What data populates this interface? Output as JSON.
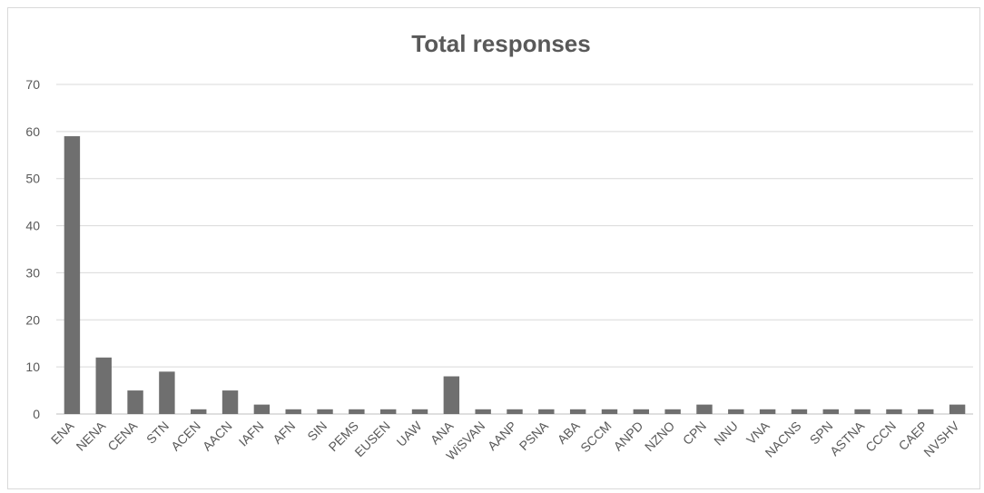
{
  "chart_data": {
    "type": "bar",
    "title": "Total responses",
    "xlabel": "",
    "ylabel": "",
    "ylim": [
      0,
      70
    ],
    "yticks": [
      0,
      10,
      20,
      30,
      40,
      50,
      60,
      70
    ],
    "grid": true,
    "legend": "none",
    "bar_color": "#6f6f6f",
    "categories": [
      "ENA",
      "NENA",
      "CENA",
      "STN",
      "ACEN",
      "AACN",
      "IAFN",
      "AFN",
      "SIN",
      "PEMS",
      "EUSEN",
      "UAW",
      "ANA",
      "WiSVAN",
      "AANP",
      "PSNA",
      "ABA",
      "SCCM",
      "ANPD",
      "NZNO",
      "CPN",
      "NNU",
      "VNA",
      "NACNS",
      "SPN",
      "ASTNA",
      "CCCN",
      "CAEP",
      "NVSHV"
    ],
    "values": [
      59,
      12,
      5,
      9,
      1,
      5,
      2,
      1,
      1,
      1,
      1,
      1,
      8,
      1,
      1,
      1,
      1,
      1,
      1,
      1,
      2,
      1,
      1,
      1,
      1,
      1,
      1,
      1,
      2
    ]
  }
}
